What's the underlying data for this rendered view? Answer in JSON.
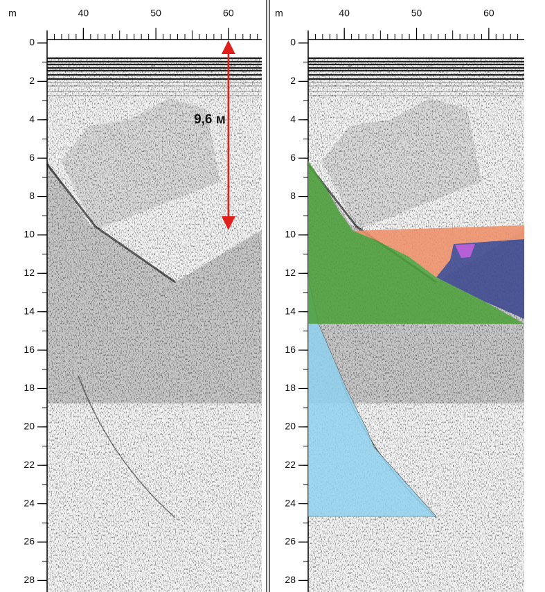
{
  "panels": [
    {
      "x_unit": "m",
      "xticks": [
        40,
        50,
        60
      ],
      "xlim": [
        35,
        64.6
      ],
      "yticks": [
        0,
        2,
        4,
        6,
        8,
        10,
        12,
        14,
        16,
        18,
        20,
        22,
        24,
        26,
        28
      ],
      "ylim": [
        0,
        28.6
      ],
      "annotation": {
        "text": "9,6 м",
        "value": 9.6,
        "x": 60
      }
    },
    {
      "x_unit": "m",
      "xticks": [
        40,
        50,
        60
      ],
      "xlim": [
        35,
        64.9
      ],
      "yticks": [
        0,
        2,
        4,
        6,
        8,
        10,
        12,
        14,
        16,
        18,
        20,
        22,
        24,
        26,
        28
      ],
      "ylim": [
        0,
        28.6
      ]
    }
  ]
}
